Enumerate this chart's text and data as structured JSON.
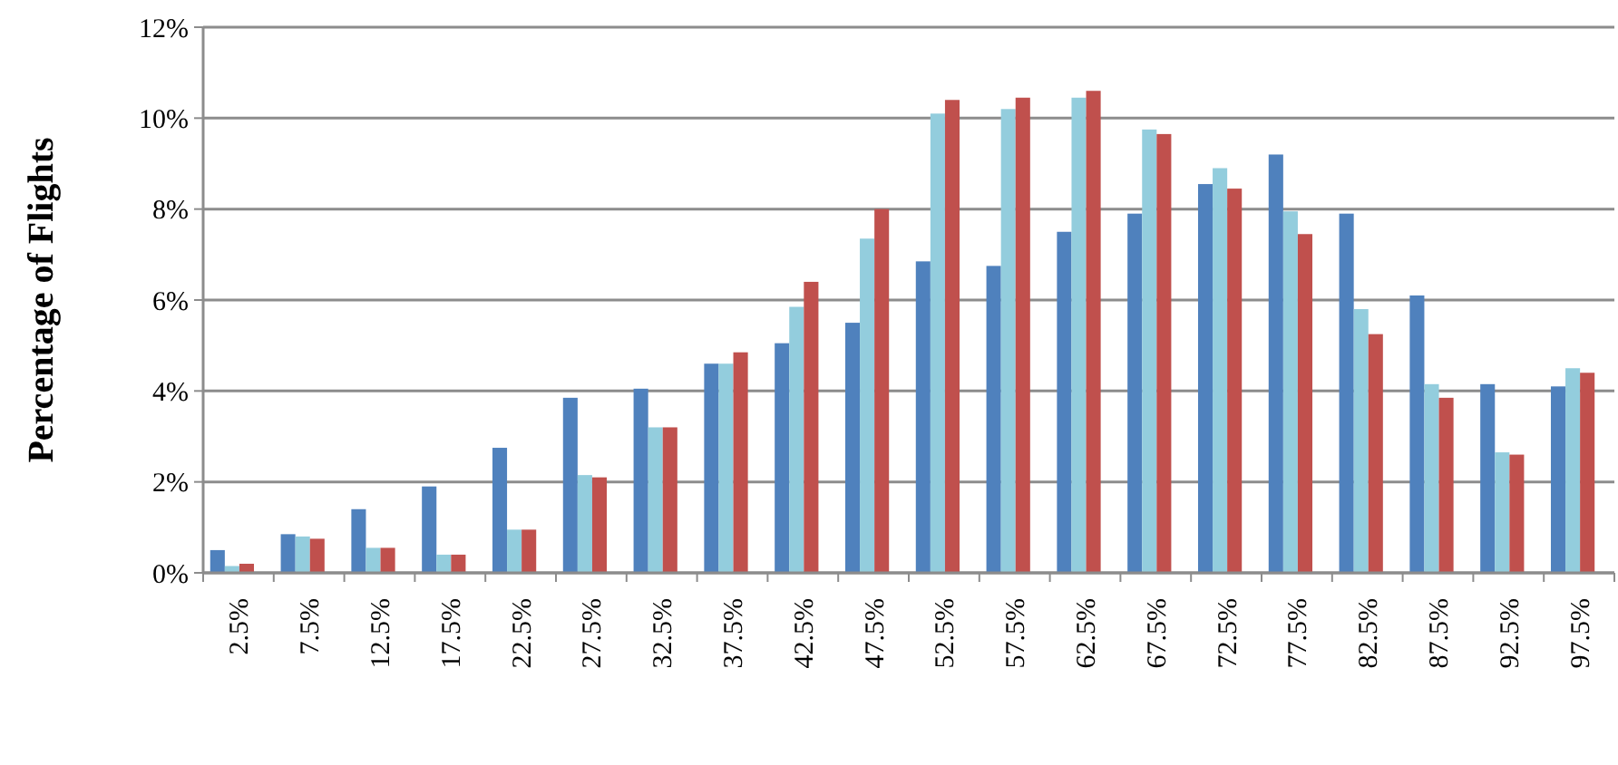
{
  "chart_data": {
    "type": "bar",
    "ylabel": "Percentage of Flights",
    "categories": [
      "2.5%",
      "7.5%",
      "12.5%",
      "17.5%",
      "22.5%",
      "27.5%",
      "32.5%",
      "37.5%",
      "42.5%",
      "47.5%",
      "52.5%",
      "57.5%",
      "62.5%",
      "67.5%",
      "72.5%",
      "77.5%",
      "82.5%",
      "87.5%",
      "92.5%",
      "97.5%"
    ],
    "series": [
      {
        "color": "#4f81bd",
        "values": [
          0.5,
          0.85,
          1.4,
          1.9,
          2.75,
          3.85,
          4.05,
          4.6,
          5.05,
          5.5,
          6.85,
          6.75,
          7.5,
          7.9,
          8.55,
          9.2,
          7.9,
          6.1,
          4.15,
          4.1
        ]
      },
      {
        "color": "#93cddd",
        "values": [
          0.15,
          0.8,
          0.55,
          0.4,
          0.95,
          2.15,
          3.2,
          4.6,
          5.85,
          7.35,
          10.1,
          10.2,
          10.45,
          9.75,
          8.9,
          7.95,
          5.8,
          4.15,
          2.65,
          4.5
        ]
      },
      {
        "color": "#c0504d",
        "values": [
          0.2,
          0.75,
          0.55,
          0.4,
          0.95,
          2.1,
          3.2,
          4.85,
          6.4,
          8.0,
          10.4,
          10.45,
          10.6,
          9.65,
          8.45,
          7.45,
          5.25,
          3.85,
          2.6,
          4.4
        ]
      }
    ],
    "ylim": [
      0,
      12
    ],
    "yticks": [
      {
        "value": 0,
        "label": "0%"
      },
      {
        "value": 2,
        "label": "2%"
      },
      {
        "value": 4,
        "label": "4%"
      },
      {
        "value": 6,
        "label": "6%"
      },
      {
        "value": 8,
        "label": "8%"
      },
      {
        "value": 10,
        "label": "10%"
      },
      {
        "value": 12,
        "label": "12%"
      }
    ],
    "grid": "y"
  }
}
